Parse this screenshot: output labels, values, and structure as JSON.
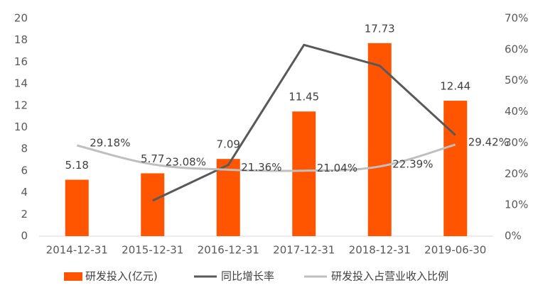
{
  "chart_data": {
    "type": "bar",
    "categories": [
      "2014-12-31",
      "2015-12-31",
      "2016-12-31",
      "2017-12-31",
      "2018-12-31",
      "2019-06-30"
    ],
    "series": [
      {
        "name": "研发投入(亿元)",
        "type": "bar",
        "axis": "left",
        "color": "#FF5500",
        "values": [
          5.18,
          5.77,
          7.09,
          11.45,
          17.73,
          12.44
        ],
        "labels": [
          "5.18",
          "5.77",
          "7.09",
          "11.45",
          "17.73",
          "12.44"
        ]
      },
      {
        "name": "同比增长率",
        "type": "line",
        "axis": "right",
        "color": "#595959",
        "values": [
          null,
          11.4,
          22.9,
          61.5,
          54.8,
          32.5
        ]
      },
      {
        "name": "研发投入占营业收入比例",
        "type": "line",
        "axis": "right",
        "color": "#BFBFBF",
        "values": [
          29.18,
          23.08,
          21.36,
          21.04,
          22.39,
          29.42
        ],
        "labels": [
          "29.18%",
          "23.08%",
          "21.36%",
          "21.04%",
          "22.39%",
          "29.42%"
        ]
      }
    ],
    "y_left": {
      "min": 0,
      "max": 20,
      "step": 2,
      "ticks": [
        "0",
        "2",
        "4",
        "6",
        "8",
        "10",
        "12",
        "14",
        "16",
        "18",
        "20"
      ]
    },
    "y_right": {
      "min": 0,
      "max": 70,
      "step": 10,
      "ticks": [
        "0%",
        "10%",
        "20%",
        "30%",
        "40%",
        "50%",
        "60%",
        "70%"
      ]
    },
    "grid": false,
    "legend_position": "bottom"
  }
}
